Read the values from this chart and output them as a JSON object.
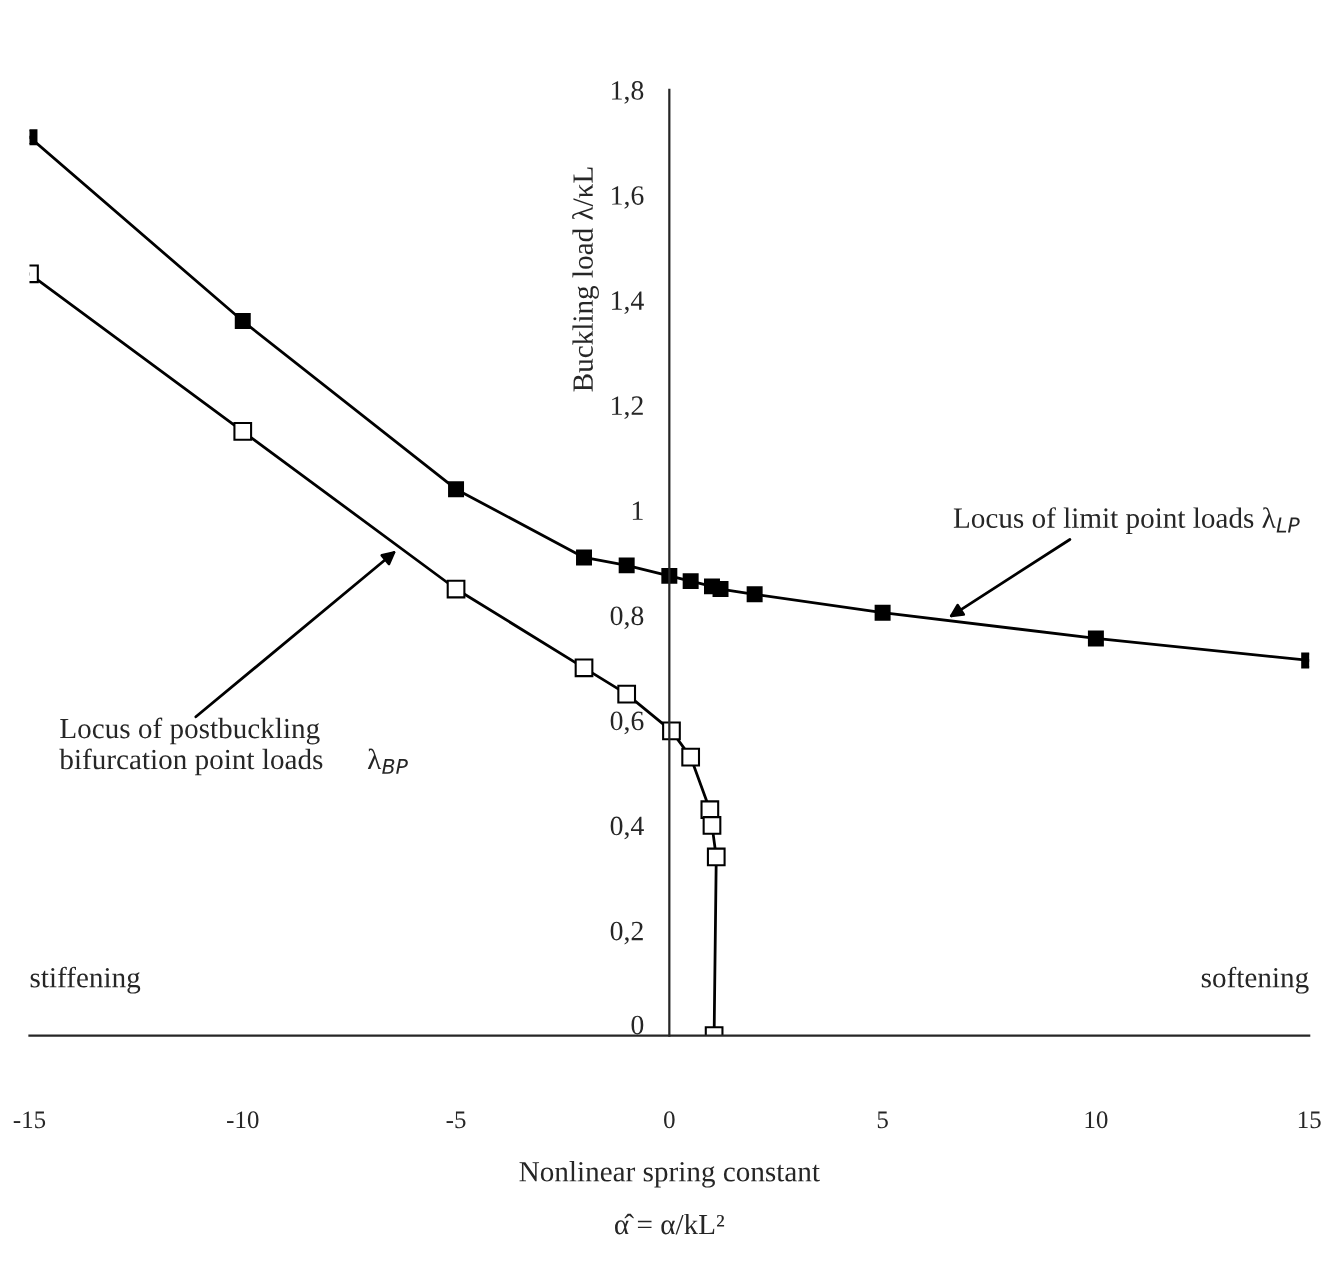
{
  "chart_data": {
    "type": "line",
    "xlabel": "Nonlinear spring constant\nα̂ = α/kL²",
    "ylabel": "Buckling load λ/κL",
    "series": [
      {
        "color": "#000000",
        "x": [
          -15,
          -10,
          -5,
          -2,
          -1,
          0.05,
          0.5,
          0.95,
          1.0,
          1.1,
          1.05
        ],
        "values": [
          1.45,
          1.15,
          0.85,
          0.7,
          0.65,
          0.58,
          0.53,
          0.43,
          0.4,
          0.34,
          0
        ]
      },
      {
        "color": "#000000",
        "x": [
          -15,
          -10,
          -5,
          -2,
          -1,
          0,
          0.5,
          1,
          1.2,
          2,
          5,
          10,
          15
        ],
        "values": [
          1.71,
          1.36,
          1.04,
          0.91,
          0.895,
          0.875,
          0.865,
          0.855,
          0.85,
          0.84,
          0.805,
          0.756,
          0.714
        ]
      }
    ],
    "annotations": [
      {
        "text": "Locus of postbuckling\nbifurcation point loads      λ$_{BP}$",
        "x": -6.3,
        "y": 0.93
      },
      {
        "text": "Locus of limit point loads λ$_{LP}$",
        "x": 6.44,
        "y": 0.79
      },
      "stiffening",
      "softening"
    ],
    "marker": "square",
    "line_style": "solid",
    "grid": false,
    "legend": false,
    "xlim": [
      -15,
      15
    ],
    "xticks": [
      -15,
      -10,
      -5,
      0,
      5,
      10,
      15
    ],
    "ylim": [
      0,
      1.8
    ],
    "yticks": [
      0,
      {
        "value": 0.2,
        "label": "0,2"
      },
      {
        "value": 0.4,
        "label": "0,4"
      },
      {
        "value": 0.6,
        "label": "0,6"
      },
      {
        "value": 0.8,
        "label": "0,8"
      },
      1,
      {
        "value": 1.2,
        "label": "1,2"
      },
      {
        "value": 1.4,
        "label": "1,4"
      },
      {
        "value": 1.6,
        "label": "1,6"
      },
      {
        "value": 1.8,
        "label": "1,8"
      }
    ]
  }
}
